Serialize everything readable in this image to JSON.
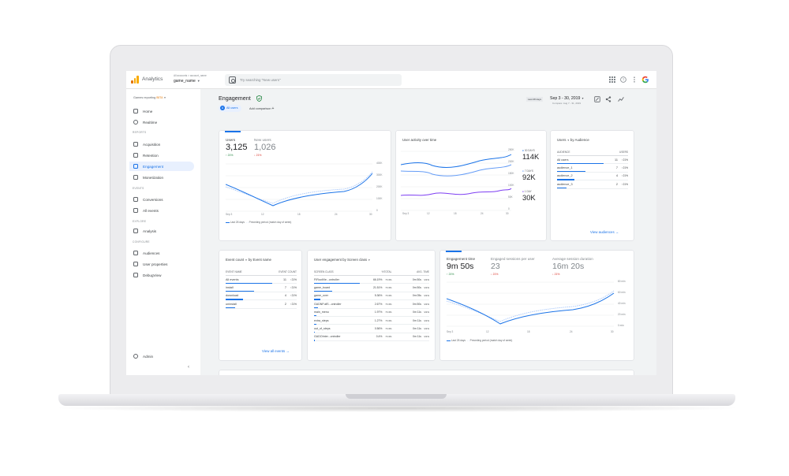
{
  "app": {
    "name": "Analytics",
    "account_path": "All accounts > account_name",
    "account_name": "game_name"
  },
  "search": {
    "placeholder": "Try searching \"New users\""
  },
  "sidebar": {
    "top_label": "Games reporting",
    "beta": "BETA",
    "items_home": [
      {
        "label": "Home",
        "icon": "home-icon"
      },
      {
        "label": "Realtime",
        "icon": "clock-icon"
      }
    ],
    "reports_header": "REPORTS",
    "reports": [
      {
        "label": "Acquisition"
      },
      {
        "label": "Retention"
      },
      {
        "label": "Engagement",
        "active": true
      },
      {
        "label": "Monetization"
      }
    ],
    "events_header": "EVENTS",
    "events": [
      {
        "label": "Conversions"
      },
      {
        "label": "All events"
      }
    ],
    "explore_header": "EXPLORE",
    "explore": [
      {
        "label": "Analysis"
      }
    ],
    "configure_header": "CONFIGURE",
    "configure": [
      {
        "label": "Audiences"
      },
      {
        "label": "User properties"
      },
      {
        "label": "DebugView"
      }
    ],
    "admin": "Admin"
  },
  "header": {
    "title": "Engagement",
    "chip_users": "All users",
    "add_comparison": "Add comparison",
    "date_badge": "Last 28 days",
    "date_range": "Sep 3 - 30, 2019",
    "date_compare": "Compare: Aug 7 - 31, 2019"
  },
  "users_card": {
    "metrics": [
      {
        "label": "Users",
        "value": "3,125",
        "change": "21%",
        "dir": "up"
      },
      {
        "label": "New users",
        "value": "1,026",
        "change": "21%",
        "dir": "down"
      }
    ],
    "y_ticks": [
      "400K",
      "300K",
      "200K",
      "100K",
      "0"
    ],
    "x_ticks": [
      "Sep 3",
      "12",
      "18",
      "24",
      "30"
    ],
    "legend_current": "Last 28 days",
    "legend_previous": "Preceding period (match day of week)"
  },
  "activity_card": {
    "title": "User activity over time",
    "y_ticks": [
      "250K",
      "200K",
      "150K",
      "100K",
      "50K",
      "0"
    ],
    "x_ticks": [
      "Sep 3",
      "12",
      "18",
      "24",
      "30"
    ],
    "series": [
      {
        "label": "30 DAYS",
        "value": "114K",
        "color": "#1a73e8"
      },
      {
        "label": "7 DAYS",
        "value": "92K",
        "color": "#4285f4"
      },
      {
        "label": "1 DAY",
        "value": "30K",
        "color": "#7e3ff2"
      }
    ]
  },
  "audience_card": {
    "title": "Users",
    "title_by": "by Audience",
    "col1": "AUDIENCE",
    "col2": "USERS",
    "rows": [
      {
        "name": "All users",
        "value": "11",
        "change": "21%",
        "bar": 1.0
      },
      {
        "name": "audience_1",
        "value": "7",
        "change": "21%",
        "bar": 0.62
      },
      {
        "name": "audience_2",
        "value": "4",
        "change": "21%",
        "bar": 0.38
      },
      {
        "name": "audience_3",
        "value": "2",
        "change": "21%",
        "bar": 0.2
      }
    ],
    "link": "View audiences"
  },
  "event_card": {
    "title": "Event count",
    "title_by": "by Event name",
    "col1": "EVENT NAME",
    "col2": "EVENT COUNT",
    "rows": [
      {
        "name": "All events",
        "value": "11",
        "change": "21%",
        "bar": 1.0
      },
      {
        "name": "install",
        "value": "7",
        "change": "21%",
        "bar": 0.62
      },
      {
        "name": "download",
        "value": "4",
        "change": "21%",
        "bar": 0.38
      },
      {
        "name": "uninstall",
        "value": "2",
        "change": "21%",
        "bar": 0.2
      }
    ],
    "link": "View all events"
  },
  "screen_card": {
    "title": "User engagement",
    "title_by": "by Screen class",
    "col1": "SCREEN CLASS",
    "col2": "%TOTAL",
    "col3": "AVG. TIME",
    "rows": [
      {
        "name": "FIRootVie...ontroller",
        "pct": "66.19%",
        "pct_change": "5.3%",
        "time": "0m 50s",
        "time_change": "21%",
        "bar": 1.0
      },
      {
        "name": "game_board",
        "pct": "21.51%",
        "pct_change": "5.3%",
        "time": "0m 50s",
        "time_change": "21%",
        "bar": 0.4
      },
      {
        "name": "game_over",
        "pct": "5.36%",
        "pct_change": "5.3%",
        "time": "0m 05s",
        "time_change": "21%",
        "bar": 0.14
      },
      {
        "name": "GADNFullS...ontroller",
        "pct": "2.67%",
        "pct_change": "5.3%",
        "time": "0m 50s",
        "time_change": "21%",
        "bar": 0.08
      },
      {
        "name": "main_menu",
        "pct": "1.97%",
        "pct_change": "5.3%",
        "time": "0m 11s",
        "time_change": "21%",
        "bar": 0.06
      },
      {
        "name": "extra_steps",
        "pct": "1.27%",
        "pct_change": "5.3%",
        "time": "0m 11s",
        "time_change": "21%",
        "bar": 0.04
      },
      {
        "name": "out_of_steps",
        "pct": "0.56%",
        "pct_change": "5.3%",
        "time": "0m 11s",
        "time_change": "21%",
        "bar": 0.02
      },
      {
        "name": "GADOInter...ontroller",
        "pct": "0.4%",
        "pct_change": "5.3%",
        "time": "0m 11s",
        "time_change": "21%",
        "bar": 0.015
      }
    ]
  },
  "time_card": {
    "metrics": [
      {
        "label": "Engagement time",
        "value": "9m 50s",
        "change": "21%",
        "dir": "up"
      },
      {
        "label": "Engaged sessions per user",
        "value": "23",
        "change": "21%",
        "dir": "down"
      },
      {
        "label": "Average session duration",
        "value": "16m 20s",
        "change": "21%",
        "dir": "down"
      }
    ],
    "y_ticks": [
      "80 min",
      "60 min",
      "40 min",
      "20 min",
      "0 min"
    ],
    "x_ticks": [
      "Sep 3",
      "12",
      "18",
      "24",
      "30"
    ],
    "legend_current": "Last 28 days",
    "legend_previous": "Preceding period (match day of week)"
  },
  "colors": {
    "accent": "#1a73e8",
    "up": "#188038",
    "down": "#d93025",
    "purple": "#7e3ff2"
  }
}
